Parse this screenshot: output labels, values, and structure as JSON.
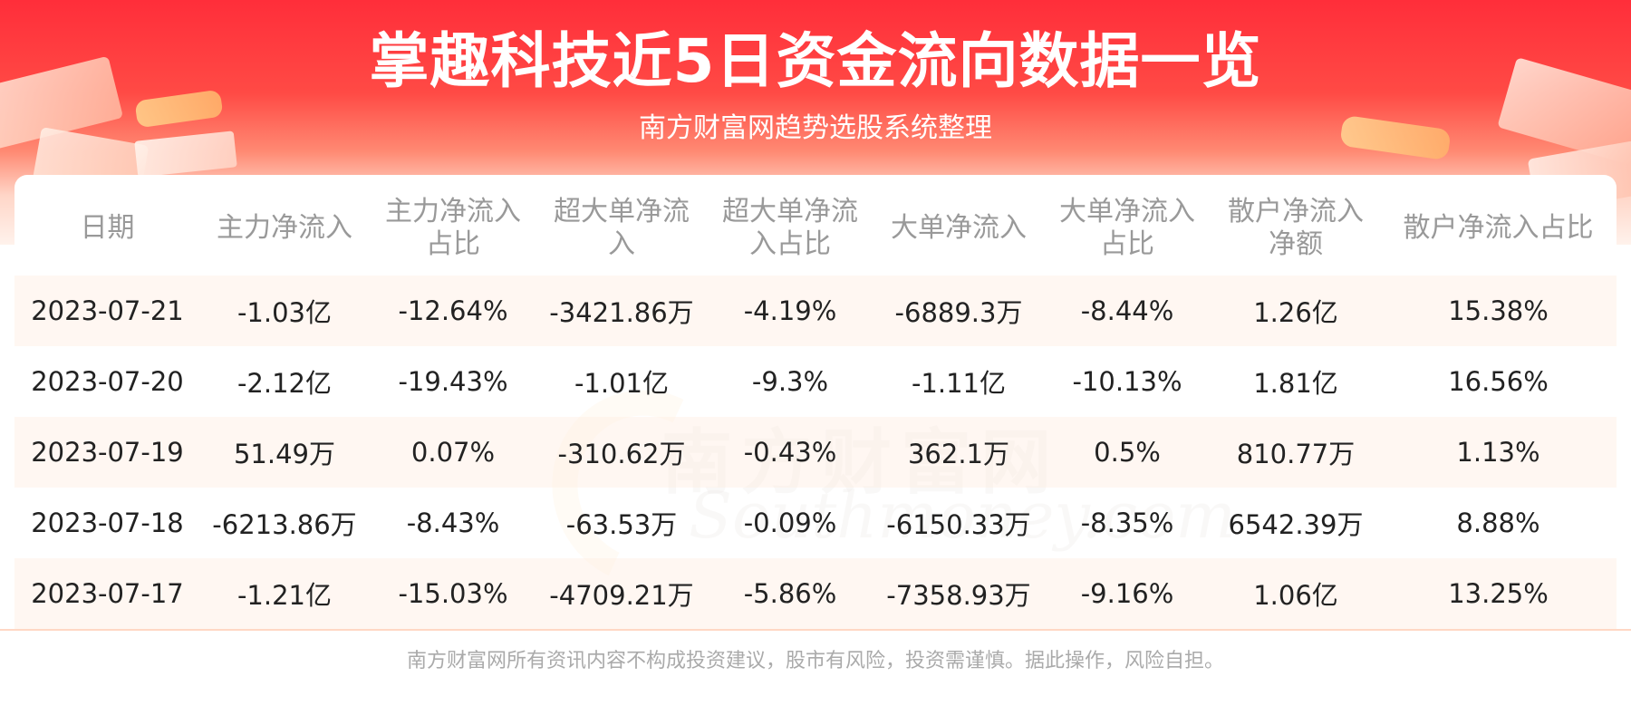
{
  "header": {
    "title": "掌趣科技近5日资金流向数据一览",
    "subtitle": "南方财富网趋势选股系统整理"
  },
  "watermark": {
    "cn": "南方财富网",
    "en": "Southmoney.com"
  },
  "table": {
    "columns": [
      "日期",
      "主力净流入",
      "主力净流入占比",
      "超大单净流入",
      "超大单净流入占比",
      "大单净流入",
      "大单净流入占比",
      "散户净流入净额",
      "散户净流入占比"
    ],
    "rows": [
      [
        "2023-07-21",
        "-1.03亿",
        "-12.64%",
        "-3421.86万",
        "-4.19%",
        "-6889.3万",
        "-8.44%",
        "1.26亿",
        "15.38%"
      ],
      [
        "2023-07-20",
        "-2.12亿",
        "-19.43%",
        "-1.01亿",
        "-9.3%",
        "-1.11亿",
        "-10.13%",
        "1.81亿",
        "16.56%"
      ],
      [
        "2023-07-19",
        "51.49万",
        "0.07%",
        "-310.62万",
        "-0.43%",
        "362.1万",
        "0.5%",
        "810.77万",
        "1.13%"
      ],
      [
        "2023-07-18",
        "-6213.86万",
        "-8.43%",
        "-63.53万",
        "-0.09%",
        "-6150.33万",
        "-8.35%",
        "6542.39万",
        "8.88%"
      ],
      [
        "2023-07-17",
        "-1.21亿",
        "-15.03%",
        "-4709.21万",
        "-5.86%",
        "-7358.93万",
        "-9.16%",
        "1.06亿",
        "13.25%"
      ]
    ]
  },
  "footer": {
    "disclaimer": "南方财富网所有资讯内容不构成投资建议，股市有风险，投资需谨慎。据此操作，风险自担。"
  }
}
